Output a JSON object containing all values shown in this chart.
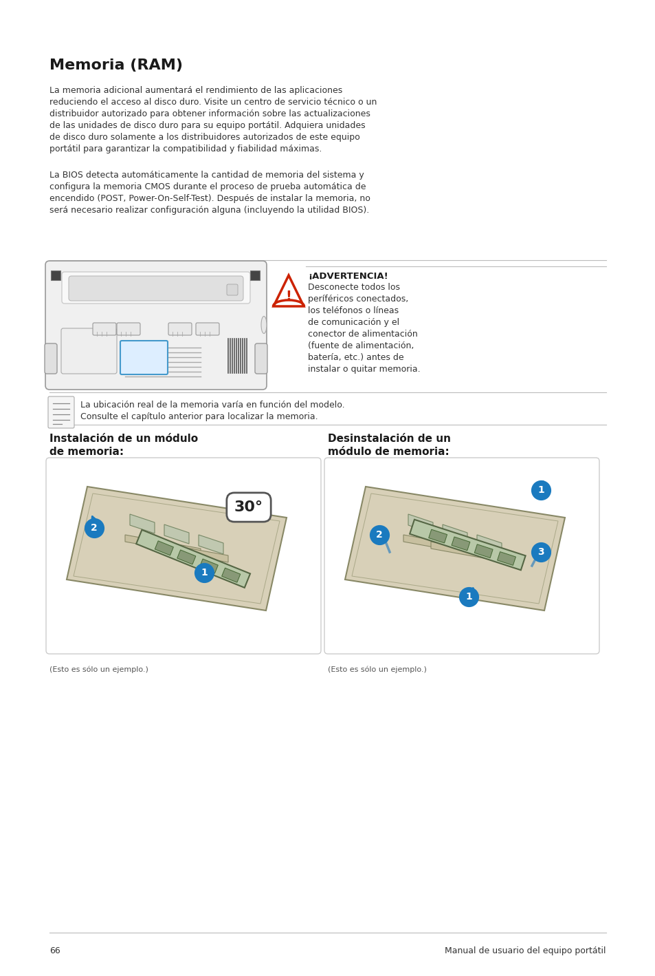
{
  "bg_color": "#ffffff",
  "title": "Memoria (RAM)",
  "body_text_1": "La memoria adicional aumentará el rendimiento de las aplicaciones\nreduciendo el acceso al disco duro. Visite un centro de servicio técnico o un\ndistribuidor autorizado para obtener información sobre las actualizaciones\nde las unidades de disco duro para su equipo portátil. Adquiera unidades\nde disco duro solamente a los distribuidores autorizados de este equipo\nportátil para garantizar la compatibilidad y fiabilidad máximas.",
  "body_text_2": "La BIOS detecta automáticamente la cantidad de memoria del sistema y\nconfigura la memoria CMOS durante el proceso de prueba automática de\nencendido (POST, Power-On-Self-Test). Después de instalar la memoria, no\nserá necesario realizar configuración alguna (incluyendo la utilidad BIOS).",
  "warning_bold": "¡ADVERTENCIA!",
  "warning_body": "Desconecte todos los\nperíféricos conectados,\nlos teléfonos o líneas\nde comunicación y el\nconector de alimentación\n(fuente de alimentación,\nbatería, etc.) antes de\ninstalar o quitar memoria.",
  "note_text": "La ubicación real de la memoria varía en función del modelo.\nConsulte el capítulo anterior para localizar la memoria.",
  "install_title": "Instalación de un módulo\nde memoria:",
  "uninstall_title": "Desinstalación de un\nmódulo de memoria:",
  "caption_text": "(Esto es sólo un ejemplo.)",
  "page_number": "66",
  "footer_right": "Manual de usuario del equipo portátil",
  "text_color": "#333333",
  "dark_color": "#1a1a1a",
  "blue_color": "#1a7abf",
  "warn_red": "#cc2200",
  "line_color": "#bbbbbb"
}
